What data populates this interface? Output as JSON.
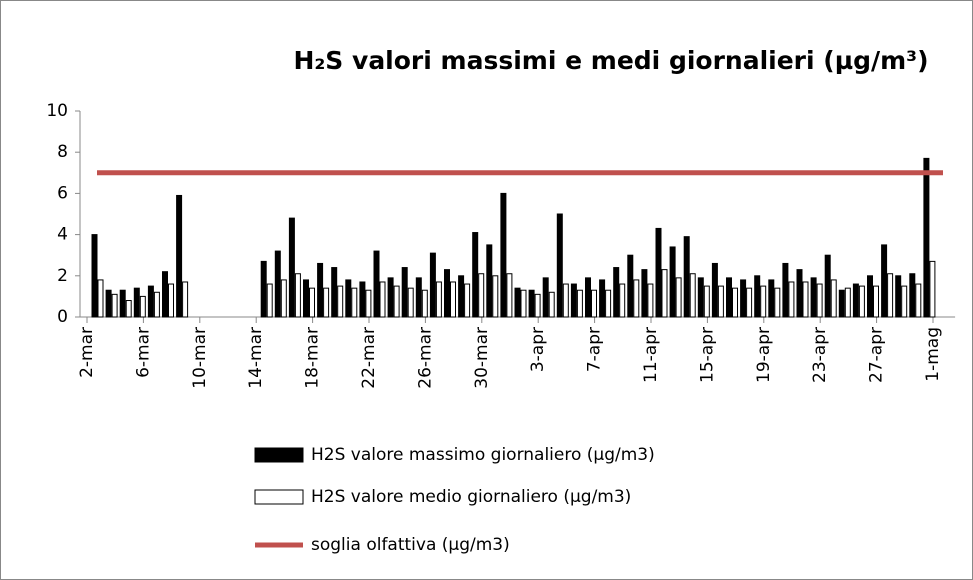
{
  "chart_data": {
    "type": "bar",
    "title": "H₂S valori massimi e medi giornalieri (µg/m³)",
    "categories": [
      "2-mar",
      null,
      null,
      null,
      "6-mar",
      null,
      null,
      null,
      "10-mar",
      null,
      null,
      null,
      "14-mar",
      null,
      null,
      null,
      "18-mar",
      null,
      null,
      null,
      "22-mar",
      null,
      null,
      null,
      "26-mar",
      null,
      null,
      null,
      "30-mar",
      null,
      null,
      null,
      "3-apr",
      null,
      null,
      null,
      "7-apr",
      null,
      null,
      null,
      "11-apr",
      null,
      null,
      null,
      "15-apr",
      null,
      null,
      null,
      "19-apr",
      null,
      null,
      null,
      "23-apr",
      null,
      null,
      null,
      "27-apr",
      null,
      null,
      null,
      "1-mag"
    ],
    "series": [
      {
        "name": "H2S valore massimo giornaliero (µg/m3)",
        "type": "bar",
        "color": "#000000",
        "values": [
          4.0,
          1.3,
          1.3,
          1.4,
          1.5,
          2.2,
          5.9,
          null,
          null,
          null,
          null,
          null,
          2.7,
          3.2,
          4.8,
          1.8,
          2.6,
          2.4,
          1.8,
          1.7,
          3.2,
          1.9,
          2.4,
          1.9,
          3.1,
          2.3,
          2.0,
          4.1,
          3.5,
          6.0,
          1.4,
          1.3,
          1.9,
          5.0,
          1.6,
          1.9,
          1.8,
          2.4,
          3.0,
          2.3,
          4.3,
          3.4,
          3.9,
          1.9,
          2.6,
          1.9,
          1.8,
          2.0,
          1.8,
          2.6,
          2.3,
          1.9,
          3.0,
          1.3,
          1.6,
          2.0,
          3.5,
          2.0,
          2.1,
          7.7,
          null
        ]
      },
      {
        "name": "H2S valore medio giornaliero (µg/m3)",
        "type": "bar",
        "color": "#ffffff",
        "values": [
          1.8,
          1.1,
          0.8,
          1.0,
          1.2,
          1.6,
          1.7,
          null,
          null,
          null,
          null,
          null,
          1.6,
          1.8,
          2.1,
          1.4,
          1.4,
          1.5,
          1.4,
          1.3,
          1.7,
          1.5,
          1.4,
          1.3,
          1.7,
          1.7,
          1.6,
          2.1,
          2.0,
          2.1,
          1.3,
          1.1,
          1.2,
          1.6,
          1.3,
          1.3,
          1.3,
          1.6,
          1.8,
          1.6,
          2.3,
          1.9,
          2.1,
          1.5,
          1.5,
          1.4,
          1.4,
          1.5,
          1.4,
          1.7,
          1.7,
          1.6,
          1.8,
          1.4,
          1.5,
          1.5,
          2.1,
          1.5,
          1.6,
          2.7,
          null
        ]
      },
      {
        "name": "soglia olfattiva (µg/m3)",
        "type": "line",
        "color": "#c0504d",
        "values": [
          7,
          7,
          7,
          7,
          7,
          7,
          7,
          7,
          7,
          7,
          7,
          7,
          7,
          7,
          7,
          7,
          7,
          7,
          7,
          7,
          7,
          7,
          7,
          7,
          7,
          7,
          7,
          7,
          7,
          7,
          7,
          7,
          7,
          7,
          7,
          7,
          7,
          7,
          7,
          7,
          7,
          7,
          7,
          7,
          7,
          7,
          7,
          7,
          7,
          7,
          7,
          7,
          7,
          7,
          7,
          7,
          7,
          7,
          7,
          7,
          7
        ]
      }
    ],
    "ylim": [
      0,
      10
    ],
    "yticks": [
      0,
      2,
      4,
      6,
      8,
      10
    ],
    "grid": false
  }
}
